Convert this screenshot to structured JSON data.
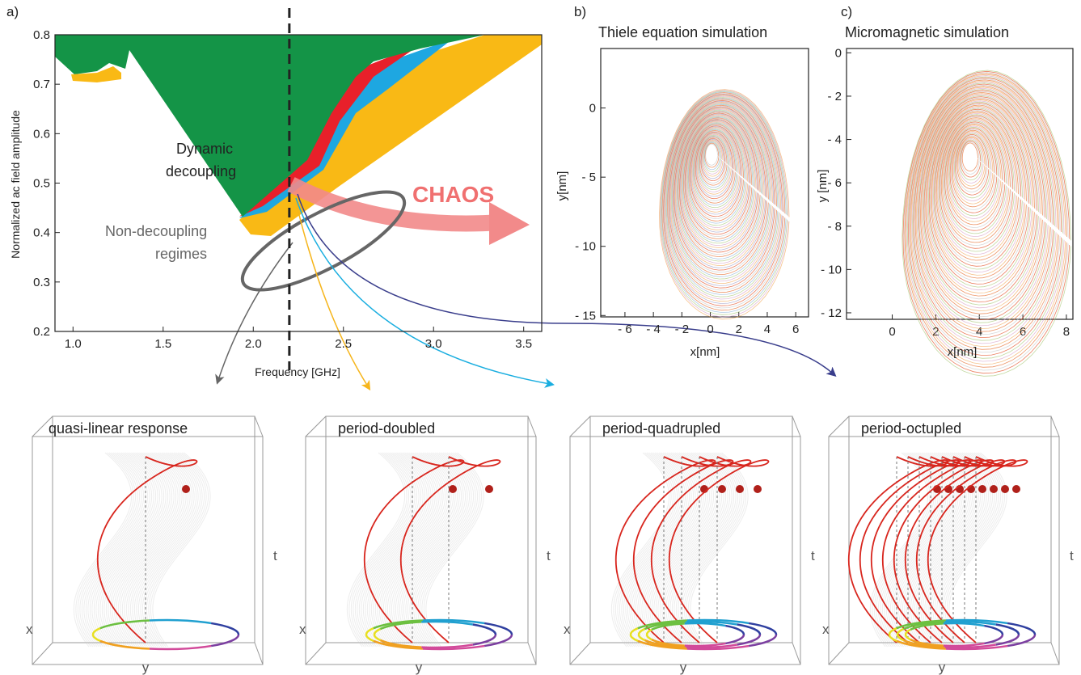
{
  "panel_a": {
    "label": "a)",
    "ylabel": "Normalized ac field amplitude",
    "xlabel": "Frequency [GHz]",
    "xlim": [
      0.9,
      3.6
    ],
    "ylim": [
      0.2,
      0.8
    ],
    "xticks": [
      {
        "value": 1,
        "label": "1.0"
      },
      1.5,
      {
        "value": 2,
        "label": "2.0"
      },
      2.5,
      {
        "value": 3,
        "label": "3.0"
      },
      3.5
    ],
    "yticks": [
      0.2,
      0.3,
      0.4,
      0.5,
      0.6,
      0.7,
      0.8
    ],
    "dashed_x": 2.2,
    "region_label": [
      "Dynamic",
      "decoupling"
    ],
    "other_label": [
      "Non-decoupling",
      "regimes"
    ],
    "chaos_label": "CHAOS"
  },
  "panel_b": {
    "label": "b)",
    "title": "Thiele equation simulation",
    "xlabel": "x[nm]",
    "ylabel": "y[nm]",
    "xlim": [
      -7.7,
      6.9
    ],
    "ylim": [
      -15.1,
      4.3
    ],
    "xticks": [
      {
        "value": -6,
        "label": "- 6"
      },
      {
        "value": -4,
        "label": "- 4"
      },
      {
        "value": -2,
        "label": "- 2"
      },
      0,
      2,
      4,
      6
    ],
    "yticks": [
      0,
      {
        "value": -5,
        "label": "- 5"
      },
      {
        "value": -10,
        "label": "- 10"
      },
      {
        "value": -15,
        "label": "- 15"
      }
    ]
  },
  "panel_c": {
    "label": "c)",
    "title": "Micromagnetic simulation",
    "xlabel": "x[nm]",
    "ylabel": "y [nm]",
    "xlim": [
      -2.1,
      8.3
    ],
    "ylim": [
      -12.3,
      0.2
    ],
    "xticks": [
      0,
      2,
      4,
      6,
      8
    ],
    "yticks": [
      0,
      {
        "value": -2,
        "label": "- 2"
      },
      {
        "value": -4,
        "label": "- 4"
      },
      {
        "value": -6,
        "label": "- 6"
      },
      {
        "value": -8,
        "label": "- 8"
      },
      {
        "value": -10,
        "label": "- 10"
      },
      {
        "value": -12,
        "label": "- 12"
      }
    ]
  },
  "trajectories": {
    "titles": [
      "quasi-linear response",
      "period-doubled",
      "period-quadrupled",
      "period-octupled"
    ],
    "axis_x": "x",
    "axis_y": "y",
    "axis_t": "t"
  }
}
